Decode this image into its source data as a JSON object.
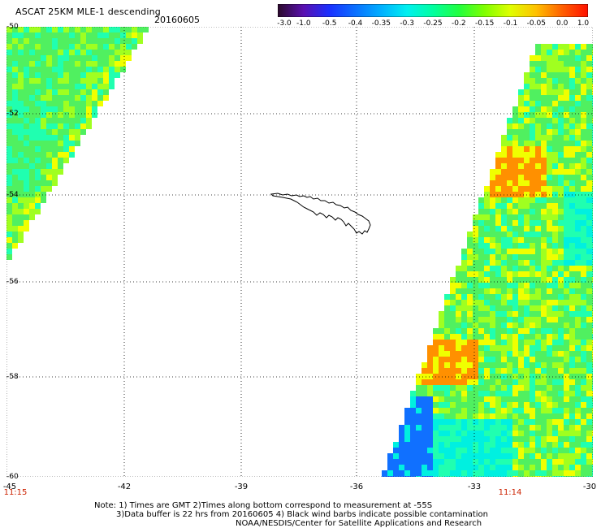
{
  "header": {
    "title": "ASCAT 25KM MLE-1 descending",
    "date": "20160605"
  },
  "colorbar": {
    "labels": [
      "-3.0",
      "-1.0",
      "-0.5",
      "-0.4",
      "-0.35",
      "-0.3",
      "-0.25",
      "-0.2",
      "-0.15",
      "-0.1",
      "-0.05",
      "0.0",
      "1.0"
    ],
    "colors": [
      "#2a0a2a",
      "#5a10b0",
      "#1a30ff",
      "#0a70ff",
      "#00b0ff",
      "#00f0f0",
      "#00ffa0",
      "#20ff40",
      "#80ff00",
      "#e0ff00",
      "#ffc000",
      "#ff6000",
      "#ff1000"
    ]
  },
  "map": {
    "lat_labels": [
      "-50",
      "-52",
      "-54",
      "-56",
      "-58",
      "-60"
    ],
    "lon_labels": [
      "-45",
      "-42",
      "-39",
      "-36",
      "-33",
      "-30"
    ],
    "time_labels": {
      "left": "11:15",
      "right": "11:14"
    },
    "swath_colors": {
      "green": "#50f060",
      "lime": "#a0ff20",
      "yellow": "#f0ff00",
      "orange": "#ff9000",
      "cyan": "#00f0e0",
      "aqua": "#20ffb0",
      "blue": "#1070ff"
    }
  },
  "notes": {
    "line1": "Note: 1) Times are GMT 2)Times along bottom correspond to measurement at -55S",
    "line2": "3)Data buffer is 22 hrs from 20160605 4) Black wind barbs indicate possible contamination",
    "line3": "NOAA/NESDIS/Center for Satellite Applications and Research"
  }
}
